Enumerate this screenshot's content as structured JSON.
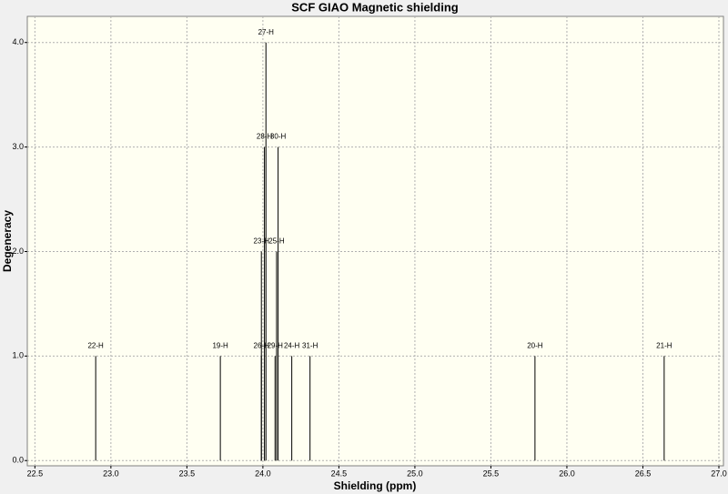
{
  "chart_data": {
    "type": "stem",
    "title": "SCF GIAO Magnetic shielding",
    "x_label": "Shielding (ppm)",
    "y_label": "Degeneracy",
    "x": [
      22.9,
      23.72,
      23.99,
      23.99,
      24.01,
      24.02,
      24.08,
      24.09,
      24.1,
      24.19,
      24.31,
      25.79,
      26.64
    ],
    "values": [
      1,
      1,
      1,
      2,
      3,
      4,
      1,
      2,
      3,
      1,
      1,
      1,
      1
    ],
    "labels": [
      "22-H",
      "19-H",
      "26-H",
      "23-H",
      "28-H",
      "27-H",
      "29-H",
      "25-H",
      "30-H",
      "24-H",
      "31-H",
      "20-H",
      "21-H"
    ],
    "color": "#000000",
    "xlim": [
      22.45,
      27.03
    ],
    "ylim": [
      -0.05,
      4.25
    ],
    "xticks": [
      22.5,
      {
        "value": 23,
        "label": "23.0"
      },
      23.5,
      {
        "value": 24,
        "label": "24.0"
      },
      24.5,
      {
        "value": 25,
        "label": "25.0"
      },
      25.5,
      {
        "value": 26,
        "label": "26.0"
      },
      26.5,
      {
        "value": 27,
        "label": "27.0"
      }
    ],
    "yticks": [
      {
        "value": 0,
        "label": "0.0"
      },
      {
        "value": 1,
        "label": "1.0"
      },
      {
        "value": 2,
        "label": "2.0"
      },
      {
        "value": 3,
        "label": "3.0"
      },
      {
        "value": 4,
        "label": "4.0"
      }
    ],
    "grid": true
  }
}
